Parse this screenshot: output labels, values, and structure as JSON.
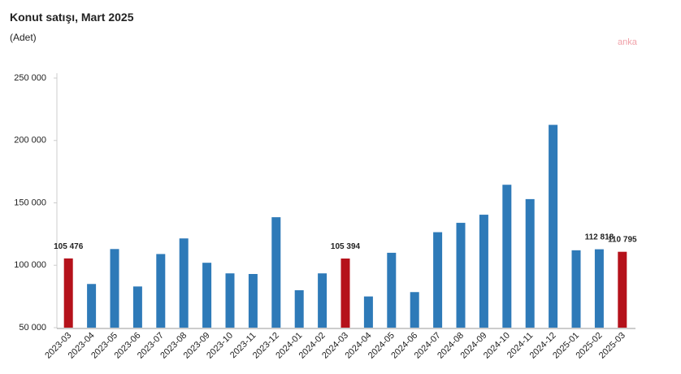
{
  "chart_data": {
    "type": "bar",
    "title": "Konut satışı, Mart 2025",
    "subtitle": "(Adet)",
    "watermark": "anka",
    "categories": [
      "2023-03",
      "2023-04",
      "2023-05",
      "2023-06",
      "2023-07",
      "2023-08",
      "2023-09",
      "2023-10",
      "2023-11",
      "2023-12",
      "2024-01",
      "2024-02",
      "2024-03",
      "2024-04",
      "2024-05",
      "2024-06",
      "2024-07",
      "2024-08",
      "2024-09",
      "2024-10",
      "2024-11",
      "2024-12",
      "2025-01",
      "2025-02",
      "2025-03"
    ],
    "values": [
      105476,
      85000,
      113000,
      83000,
      109000,
      121500,
      102000,
      93500,
      93000,
      138500,
      80000,
      93500,
      105394,
      75000,
      110000,
      78500,
      126500,
      134000,
      140500,
      164500,
      153000,
      212500,
      112000,
      112818,
      110795
    ],
    "value_labels": [
      "105 476",
      null,
      null,
      null,
      null,
      null,
      null,
      null,
      null,
      null,
      null,
      null,
      "105 394",
      null,
      null,
      null,
      null,
      null,
      null,
      null,
      null,
      null,
      null,
      "112 818",
      "110 795"
    ],
    "colors": [
      "#b5121b",
      "#2e7ab8",
      "#2e7ab8",
      "#2e7ab8",
      "#2e7ab8",
      "#2e7ab8",
      "#2e7ab8",
      "#2e7ab8",
      "#2e7ab8",
      "#2e7ab8",
      "#2e7ab8",
      "#2e7ab8",
      "#b5121b",
      "#2e7ab8",
      "#2e7ab8",
      "#2e7ab8",
      "#2e7ab8",
      "#2e7ab8",
      "#2e7ab8",
      "#2e7ab8",
      "#2e7ab8",
      "#2e7ab8",
      "#2e7ab8",
      "#2e7ab8",
      "#b5121b"
    ],
    "ylim": [
      50000,
      250000
    ],
    "yticks": [
      {
        "value": 50000,
        "label": "50 000"
      },
      {
        "value": 100000,
        "label": "100 000"
      },
      {
        "value": 150000,
        "label": "150 000"
      },
      {
        "value": 200000,
        "label": "200 000"
      },
      {
        "value": 250000,
        "label": "250 000"
      }
    ],
    "grid": false
  }
}
